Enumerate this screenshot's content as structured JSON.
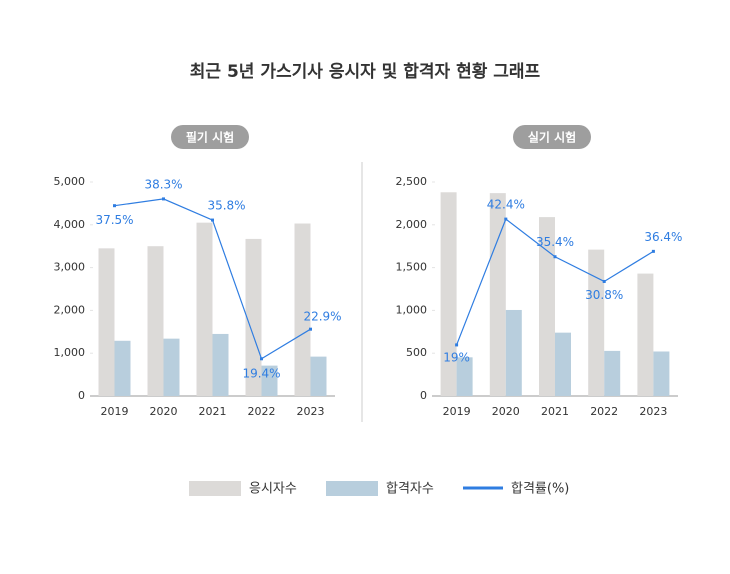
{
  "title": "최근 5년 가스기사 응시자 및 합격자 현황 그래프",
  "chart_data": [
    {
      "type": "bar",
      "subtitle": "필기 시험",
      "categories": [
        "2019",
        "2020",
        "2021",
        "2022",
        "2023"
      ],
      "ylim": [
        0,
        5000
      ],
      "yticks": [
        0,
        {
          "value": 1000,
          "label": "1,000"
        },
        {
          "value": 2000,
          "label": "2,000"
        },
        {
          "value": 3000,
          "label": "3,000"
        },
        {
          "value": 4000,
          "label": "4,000"
        },
        {
          "value": 5000,
          "label": "5,000"
        }
      ],
      "y2lim": [
        15,
        40.3
      ],
      "series": [
        {
          "name": "응시자수",
          "color": "#dcdad8",
          "values": [
            3450,
            3500,
            4050,
            3670,
            4030
          ]
        },
        {
          "name": "합격자수",
          "color": "#b8cedd",
          "values": [
            1290,
            1340,
            1450,
            710,
            920
          ]
        },
        {
          "name": "합격률(%)",
          "type": "line",
          "axis": "y2",
          "color": "#2f7de1",
          "values": [
            37.5,
            38.3,
            35.8,
            19.4,
            22.9
          ],
          "value_labels": [
            "37.5%",
            "38.3%",
            "35.8%",
            "19.4%",
            "22.9%"
          ]
        }
      ]
    },
    {
      "type": "bar",
      "subtitle": "실기 시험",
      "categories": [
        "2019",
        "2020",
        "2021",
        "2022",
        "2023"
      ],
      "ylim": [
        0,
        2500
      ],
      "yticks": [
        0,
        500,
        {
          "value": 1000,
          "label": "1,000"
        },
        {
          "value": 1500,
          "label": "1,500"
        },
        {
          "value": 2000,
          "label": "2,000"
        },
        {
          "value": 2500,
          "label": "2,500"
        }
      ],
      "y2lim": [
        9.5,
        49.3
      ],
      "series": [
        {
          "name": "응시자수",
          "color": "#dcdad8",
          "values": [
            2380,
            2370,
            2090,
            1710,
            1430
          ]
        },
        {
          "name": "합격자수",
          "color": "#b8cedd",
          "values": [
            452,
            1005,
            740,
            527,
            520
          ]
        },
        {
          "name": "합격률(%)",
          "type": "line",
          "axis": "y2",
          "color": "#2f7de1",
          "values": [
            19,
            42.4,
            35.4,
            30.8,
            36.4
          ],
          "value_labels": [
            "19%",
            "42.4%",
            "35.4%",
            "30.8%",
            "36.4%"
          ]
        }
      ]
    }
  ]
}
